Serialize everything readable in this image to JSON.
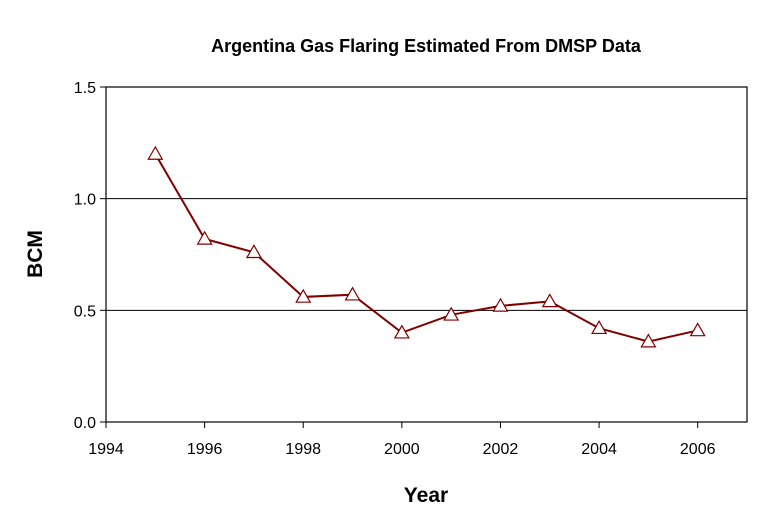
{
  "chart_data": {
    "type": "line",
    "title": "Argentina Gas Flaring Estimated From DMSP Data",
    "xlabel": "Year",
    "ylabel": "BCM",
    "xlim": [
      1994,
      2007
    ],
    "ylim": [
      0,
      1.5
    ],
    "x_ticks": [
      "1994",
      "1996",
      "1998",
      "2000",
      "2002",
      "2004",
      "2006"
    ],
    "y_ticks": [
      "0.0",
      "0.5",
      "1.0",
      "1.5"
    ],
    "grid": "horizontal",
    "legend": "none",
    "series": [
      {
        "x": [
          1995,
          1996,
          1997,
          1998,
          1999,
          2000,
          2001,
          2002,
          2003,
          2004,
          2005,
          2006
        ],
        "values": [
          1.2,
          0.82,
          0.76,
          0.56,
          0.57,
          0.4,
          0.48,
          0.52,
          0.54,
          0.42,
          0.36,
          0.41
        ],
        "color": "#800000",
        "marker": "triangle",
        "marker_fill": "#ffffff"
      }
    ]
  }
}
